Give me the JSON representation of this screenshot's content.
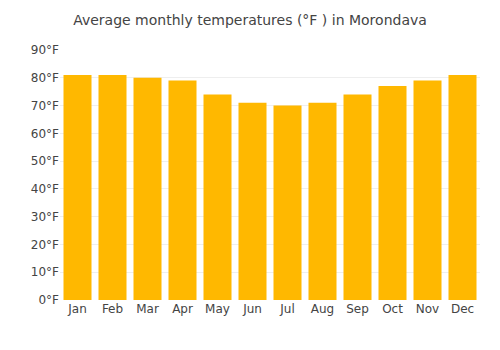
{
  "chart_data": {
    "type": "bar",
    "title": "Average monthly temperatures (°F ) in Morondava",
    "categories": [
      "Jan",
      "Feb",
      "Mar",
      "Apr",
      "May",
      "Jun",
      "Jul",
      "Aug",
      "Sep",
      "Oct",
      "Nov",
      "Dec"
    ],
    "values": [
      81,
      81,
      80,
      79,
      74,
      71,
      70,
      71,
      74,
      77,
      79,
      81
    ],
    "color": "#FFB800",
    "ylim": [
      0,
      90
    ],
    "yticks": [
      {
        "value": 0,
        "label": "0°F"
      },
      {
        "value": 10,
        "label": "10°F"
      },
      {
        "value": 20,
        "label": "20°F"
      },
      {
        "value": 30,
        "label": "30°F"
      },
      {
        "value": 40,
        "label": "40°F"
      },
      {
        "value": 50,
        "label": "50°F"
      },
      {
        "value": 60,
        "label": "60°F"
      },
      {
        "value": 70,
        "label": "70°F"
      },
      {
        "value": 80,
        "label": "80°F"
      },
      {
        "value": 90,
        "label": "90°F"
      }
    ],
    "grid": true
  }
}
